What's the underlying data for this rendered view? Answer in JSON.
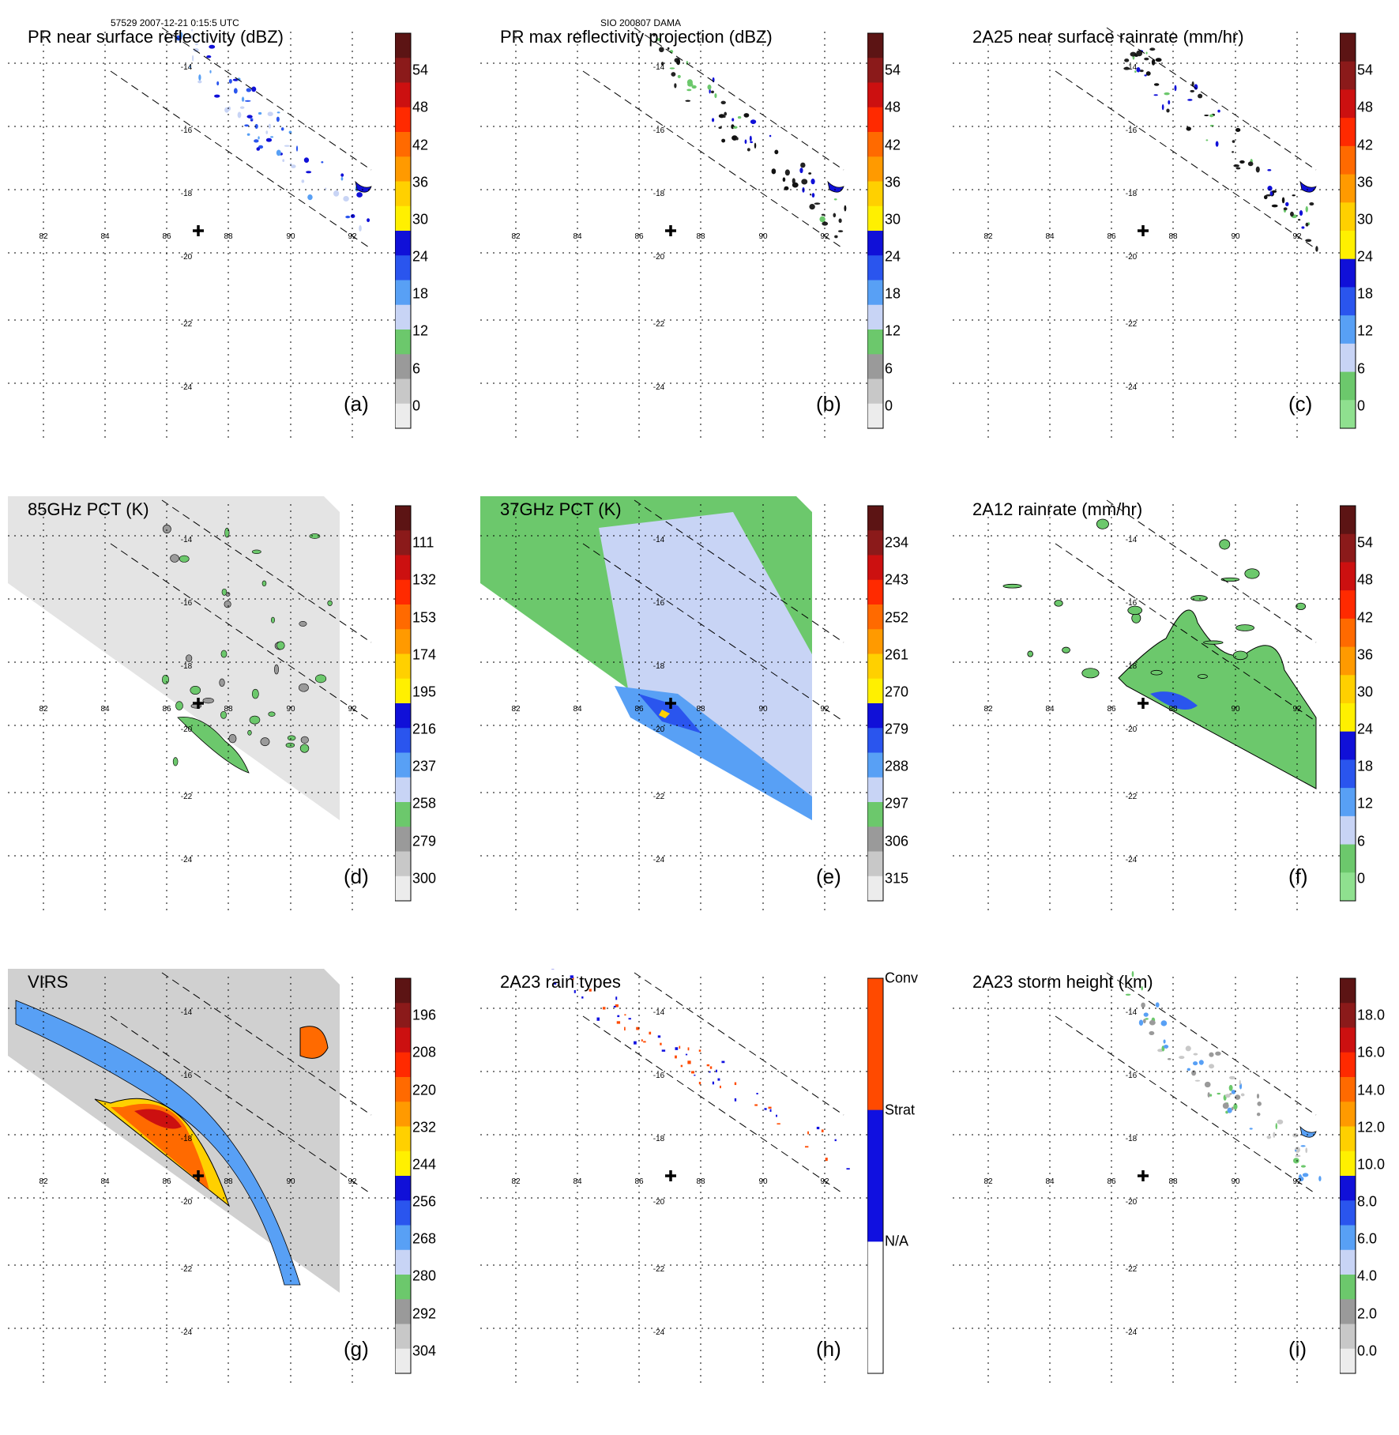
{
  "header": {
    "left": "57529 2007-12-21 0:15:5 UTC",
    "center": "SIO 200807 DAMA"
  },
  "grid": {
    "lons": [
      "82",
      "84",
      "86",
      "88",
      "90",
      "92"
    ],
    "lats": [
      "-14",
      "-16",
      "-18",
      "-20",
      "-22",
      "-24"
    ]
  },
  "panels": [
    {
      "title": "PR near surface reflectivity (dBZ)",
      "label": "(a)",
      "kind": "pr",
      "ticks": [
        "54",
        "48",
        "42",
        "36",
        "30",
        "24",
        "18",
        "12",
        "6",
        "0"
      ],
      "colors": [
        "#5c1414",
        "#8b1a1a",
        "#cc1010",
        "#ff2a00",
        "#ff6a00",
        "#ff9a00",
        "#ffd000",
        "#fff000",
        "#1010d8",
        "#2a55ee",
        "#58a0f5",
        "#c8d4f5",
        "#6cc86c",
        "#9a9a9a",
        "#c8c8c8",
        "#ececec"
      ]
    },
    {
      "title": "PR max reflectivity projection (dBZ)",
      "label": "(b)",
      "kind": "pr",
      "ticks": [
        "54",
        "48",
        "42",
        "36",
        "30",
        "24",
        "18",
        "12",
        "6",
        "0"
      ],
      "colors": [
        "#5c1414",
        "#8b1a1a",
        "#cc1010",
        "#ff2a00",
        "#ff6a00",
        "#ff9a00",
        "#ffd000",
        "#fff000",
        "#1010d8",
        "#2a55ee",
        "#58a0f5",
        "#c8d4f5",
        "#6cc86c",
        "#9a9a9a",
        "#c8c8c8",
        "#ececec"
      ]
    },
    {
      "title": "2A25 near surface rainrate (mm/hr)",
      "label": "(c)",
      "kind": "pr",
      "ticks": [
        "54",
        "48",
        "42",
        "36",
        "30",
        "24",
        "18",
        "12",
        "6",
        "0"
      ],
      "colors": [
        "#5c1414",
        "#8b1a1a",
        "#cc1010",
        "#ff2a00",
        "#ff6a00",
        "#ff9a00",
        "#ffd000",
        "#fff000",
        "#1010d8",
        "#2a55ee",
        "#58a0f5",
        "#c8d4f5",
        "#6cc86c",
        "#8fe08f"
      ]
    },
    {
      "title": "85GHz PCT (K)",
      "label": "(d)",
      "kind": "tmi_gray",
      "ticks": [
        "111",
        "132",
        "153",
        "174",
        "195",
        "216",
        "237",
        "258",
        "279",
        "300"
      ],
      "colors": [
        "#5c1414",
        "#8b1a1a",
        "#cc1010",
        "#ff2a00",
        "#ff6a00",
        "#ff9a00",
        "#ffd000",
        "#fff000",
        "#1010d8",
        "#2a55ee",
        "#58a0f5",
        "#c8d4f5",
        "#6cc86c",
        "#9a9a9a",
        "#c8c8c8",
        "#ececec"
      ]
    },
    {
      "title": "37GHz PCT (K)",
      "label": "(e)",
      "kind": "tmi_color",
      "ticks": [
        "234",
        "243",
        "252",
        "261",
        "270",
        "279",
        "288",
        "297",
        "306",
        "315"
      ],
      "colors": [
        "#5c1414",
        "#8b1a1a",
        "#cc1010",
        "#ff2a00",
        "#ff6a00",
        "#ff9a00",
        "#ffd000",
        "#fff000",
        "#1010d8",
        "#2a55ee",
        "#58a0f5",
        "#c8d4f5",
        "#6cc86c",
        "#9a9a9a",
        "#c8c8c8",
        "#ececec"
      ]
    },
    {
      "title": "2A12 rainrate (mm/hr)",
      "label": "(f)",
      "kind": "tmi_rain",
      "ticks": [
        "54",
        "48",
        "42",
        "36",
        "30",
        "24",
        "18",
        "12",
        "6",
        "0"
      ],
      "colors": [
        "#5c1414",
        "#8b1a1a",
        "#cc1010",
        "#ff2a00",
        "#ff6a00",
        "#ff9a00",
        "#ffd000",
        "#fff000",
        "#1010d8",
        "#2a55ee",
        "#58a0f5",
        "#c8d4f5",
        "#6cc86c",
        "#8fe08f"
      ]
    },
    {
      "title": "VIRS",
      "label": "(g)",
      "kind": "virs",
      "ticks": [
        "196",
        "208",
        "220",
        "232",
        "244",
        "256",
        "268",
        "280",
        "292",
        "304"
      ],
      "colors": [
        "#5c1414",
        "#8b1a1a",
        "#cc1010",
        "#ff2a00",
        "#ff6a00",
        "#ff9a00",
        "#ffd000",
        "#fff000",
        "#1010d8",
        "#2a55ee",
        "#58a0f5",
        "#c8d4f5",
        "#6cc86c",
        "#9a9a9a",
        "#c8c8c8",
        "#ececec"
      ]
    },
    {
      "title": "2A23 rain types",
      "label": "(h)",
      "kind": "raintype",
      "ticks": [
        "Conv",
        "Strat",
        "N/A"
      ],
      "colors": [
        "#ff4a00",
        "#1010e0",
        "#ffffff"
      ]
    },
    {
      "title": "2A23 storm height (km)",
      "label": "(i)",
      "kind": "pr",
      "ticks": [
        "18.0",
        "16.0",
        "14.0",
        "12.0",
        "10.0",
        "8.0",
        "6.0",
        "4.0",
        "2.0",
        "0.0"
      ],
      "colors": [
        "#5c1414",
        "#8b1a1a",
        "#cc1010",
        "#ff2a00",
        "#ff6a00",
        "#ff9a00",
        "#ffd000",
        "#fff000",
        "#1010d8",
        "#2a55ee",
        "#58a0f5",
        "#c8d4f5",
        "#6cc86c",
        "#9a9a9a",
        "#c8c8c8",
        "#ececec"
      ]
    }
  ]
}
